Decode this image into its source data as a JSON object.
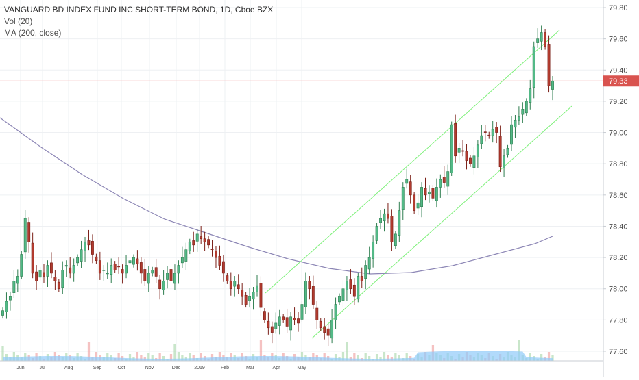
{
  "legend": {
    "title": "VANGUARD BD INDEX FUND INC SHORT-TERM BOND, 1D, Cboe BZX",
    "vol": "Vol (20)",
    "ma": "MA (200, close)"
  },
  "price_label": "79.33",
  "colors": {
    "up": "#53b987",
    "up_border": "#2e7d4f",
    "down": "#b23b2f",
    "down_border": "#7a1f17",
    "ma": "#8c86b5",
    "channel": "#7ef07a",
    "vol_area": "#90caf9",
    "vol_up": "#a5d6a7",
    "vol_down": "#ef9a9a",
    "price_line": "#f4b6b6",
    "price_tag": "#d9534f"
  },
  "chart_data": {
    "type": "candlestick",
    "y_axis": {
      "min": 77.55,
      "max": 79.85,
      "ticks": [
        77.6,
        77.8,
        78.0,
        78.2,
        78.4,
        78.6,
        78.8,
        79.0,
        79.2,
        79.4,
        79.6,
        79.8
      ]
    },
    "x_labels": [
      "Jun",
      "Jul",
      "Aug",
      "Sep",
      "Oct",
      "Nov",
      "Dec",
      "2019",
      "Feb",
      "Mar",
      "Apr",
      "May"
    ],
    "last_price": 79.33,
    "close": [
      77.86,
      77.92,
      77.95,
      78.05,
      78.08,
      78.22,
      78.45,
      78.3,
      78.1,
      78.05,
      78.12,
      78.08,
      78.15,
      78.1,
      78.05,
      78.0,
      78.12,
      78.15,
      78.1,
      78.15,
      78.2,
      78.25,
      78.3,
      78.28,
      78.22,
      78.18,
      78.1,
      78.12,
      78.1,
      78.15,
      78.12,
      78.14,
      78.1,
      78.15,
      78.18,
      78.2,
      78.16,
      78.1,
      78.05,
      78.1,
      78.12,
      78.08,
      78.0,
      78.05,
      78.1,
      78.05,
      78.1,
      78.15,
      78.2,
      78.25,
      78.3,
      78.28,
      78.35,
      78.32,
      78.3,
      78.28,
      78.25,
      78.2,
      78.15,
      78.1,
      78.05,
      78.0,
      78.05,
      78.0,
      77.95,
      77.9,
      77.95,
      77.98,
      78.02,
      77.88,
      77.8,
      77.75,
      77.72,
      77.78,
      77.82,
      77.8,
      77.76,
      77.82,
      77.8,
      77.78,
      77.9,
      78.05,
      78.0,
      77.9,
      77.8,
      77.75,
      77.72,
      77.7,
      77.8,
      77.9,
      77.95,
      78.0,
      78.05,
      78.0,
      77.95,
      78.08,
      78.05,
      78.15,
      78.2,
      78.3,
      78.4,
      78.45,
      78.48,
      78.45,
      78.3,
      78.35,
      78.5,
      78.65,
      78.7,
      78.6,
      78.5,
      78.55,
      78.65,
      78.6,
      78.62,
      78.58,
      78.65,
      78.7,
      78.68,
      78.75,
      79.05,
      78.85,
      78.9,
      78.88,
      78.82,
      78.8,
      78.85,
      78.92,
      78.98,
      79.0,
      78.98,
      79.02,
      79.0,
      78.78,
      78.85,
      78.9,
      79.05,
      79.08,
      79.1,
      79.15,
      79.2,
      79.28,
      79.55,
      79.6,
      79.64,
      79.55,
      79.3,
      79.33
    ]
  }
}
